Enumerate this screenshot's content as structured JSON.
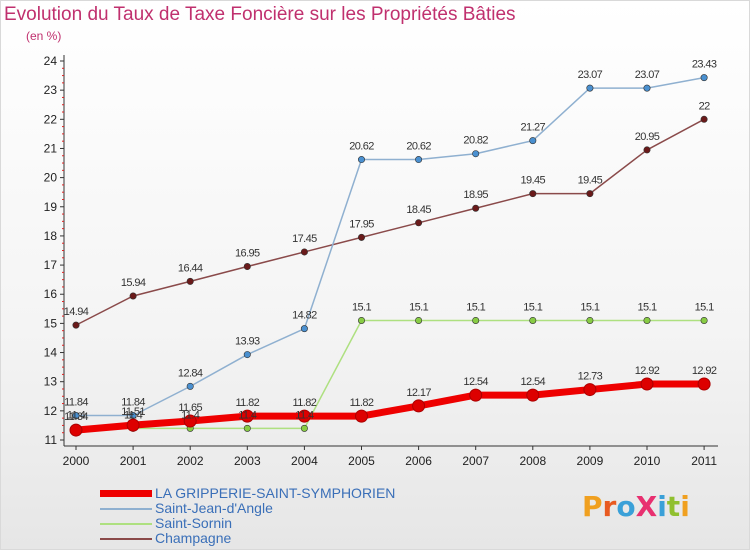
{
  "header": {
    "title": "Evolution du Taux de Taxe Foncière sur les Propriétés Bâties",
    "subtitle": "(en %)"
  },
  "logo": {
    "text": "ProXiti",
    "letter_colors": [
      "#f0a020",
      "#e85a20",
      "#3aa0d8",
      "#e83070",
      "#3aa0d8",
      "#90c030",
      "#f0a020"
    ]
  },
  "chart_data": {
    "type": "line",
    "title": "Evolution du Taux de Taxe Foncière sur les Propriétés Bâties",
    "ylabel": "(en %)",
    "xlabel": "",
    "x": [
      "2000",
      "2001",
      "2002",
      "2003",
      "2004",
      "2005",
      "2006",
      "2007",
      "2008",
      "2009",
      "2010",
      "2011"
    ],
    "ylim": [
      11,
      24
    ],
    "yticks": [
      "11",
      "12",
      "13",
      "14",
      "15",
      "16",
      "17",
      "18",
      "19",
      "20",
      "21",
      "22",
      "23",
      "24"
    ],
    "grid": false,
    "legend_position": "bottom-left",
    "series": [
      {
        "name": "LA GRIPPERIE-SAINT-SYMPHORIEN",
        "color": "#ee0000",
        "marker_color": "#dd0000",
        "width": 7,
        "values": [
          11.34,
          11.51,
          11.65,
          11.82,
          11.82,
          11.82,
          12.17,
          12.54,
          12.54,
          12.73,
          12.92,
          12.92
        ],
        "labels": [
          "11.34",
          "11.51",
          "11.65",
          "11.82",
          "11.82",
          "11.82",
          "12.17",
          "12.54",
          "12.54",
          "12.73",
          "12.92",
          "12.92"
        ]
      },
      {
        "name": "Saint-Jean-d'Angle",
        "color": "#8fb0d0",
        "marker_color": "#4a90d0",
        "width": 1.5,
        "values": [
          11.84,
          11.84,
          12.84,
          13.93,
          14.82,
          20.62,
          20.62,
          20.82,
          21.27,
          23.07,
          23.07,
          23.43
        ],
        "labels": [
          "11.84",
          "11.84",
          "12.84",
          "13.93",
          "14.82",
          "20.62",
          "20.62",
          "20.82",
          "21.27",
          "23.07",
          "23.07",
          "23.43"
        ]
      },
      {
        "name": "Saint-Sornin",
        "color": "#aee080",
        "marker_color": "#88cc44",
        "width": 1.5,
        "values": [
          11.4,
          11.4,
          11.4,
          11.4,
          11.4,
          15.1,
          15.1,
          15.1,
          15.1,
          15.1,
          15.1,
          15.1
        ],
        "labels": [
          "11.4",
          "11.4",
          "11.4",
          "11.4",
          "11.4",
          "15.1",
          "15.1",
          "15.1",
          "15.1",
          "15.1",
          "15.1",
          "15.1"
        ]
      },
      {
        "name": "Champagne",
        "color": "#8a4a4a",
        "marker_color": "#6a1a1a",
        "width": 1.5,
        "values": [
          14.94,
          15.94,
          16.44,
          16.95,
          17.45,
          17.95,
          18.45,
          18.95,
          19.45,
          19.45,
          20.95,
          22
        ],
        "labels": [
          "14.94",
          "15.94",
          "16.44",
          "16.95",
          "17.45",
          "17.95",
          "18.45",
          "18.95",
          "19.45",
          "19.45",
          "20.95",
          "22"
        ]
      }
    ]
  }
}
